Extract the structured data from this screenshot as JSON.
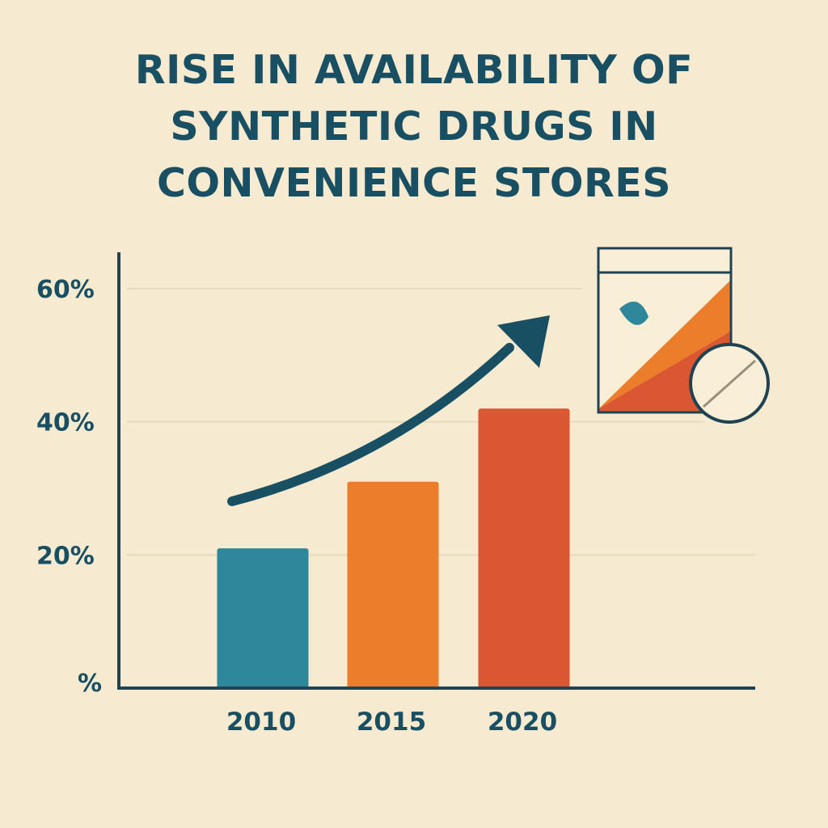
{
  "title_lines": [
    "RISE IN AVAILABILITY OF",
    "SYNTHETIC DRUGS IN",
    "CONVENIENCE STORES"
  ],
  "colors": {
    "background": "#f6ead0",
    "text": "#184f63",
    "axis": "#1f4352",
    "gridline": "#e6d9b8",
    "bar_2010": "#2e879a",
    "bar_2015": "#ec7d2b",
    "bar_2020": "#da5731"
  },
  "chart_data": {
    "type": "bar",
    "title": "RISE IN AVAILABILITY OF SYNTHETIC DRUGS IN CONVENIENCE STORES",
    "categories": [
      "2010",
      "2015",
      "2020"
    ],
    "values": [
      21,
      31,
      42
    ],
    "bar_colors": [
      "#2e879a",
      "#ec7d2b",
      "#da5731"
    ],
    "ylim": [
      0,
      60
    ],
    "yticks": [
      {
        "value": 0,
        "label": "%"
      },
      {
        "value": 20,
        "label": "20%"
      },
      {
        "value": 40,
        "label": "40%"
      },
      {
        "value": 60,
        "label": "60%"
      }
    ],
    "grid": true,
    "xlabel": "",
    "ylabel": "",
    "annotation": "upward trend arrow",
    "illustration": "packet with leaf and pill icons"
  }
}
